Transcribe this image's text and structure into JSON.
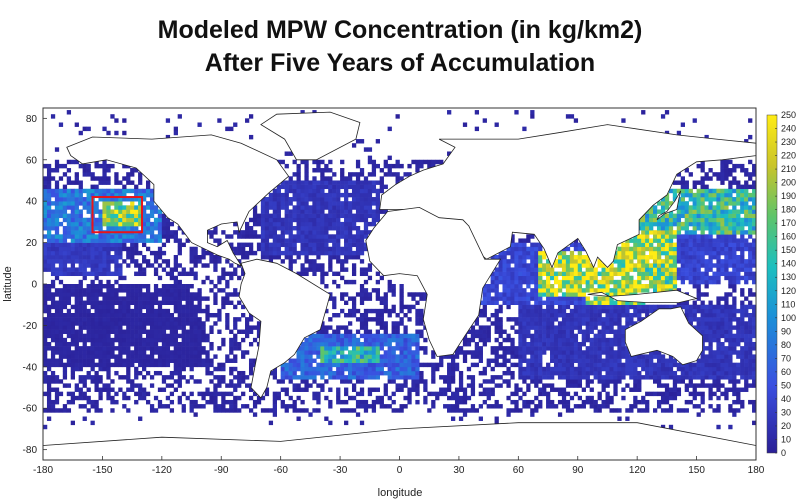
{
  "title_lines": [
    "Modeled MPW Concentration (in kg/km2)",
    "After Five Years of Accumulation"
  ],
  "chart_data": {
    "type": "heatmap",
    "title": "Modeled MPW Concentration (in kg/km2) After Five Years of Accumulation",
    "xlabel": "longitude",
    "ylabel": "latitude",
    "xlim": [
      -180,
      180
    ],
    "ylim": [
      -85,
      85
    ],
    "x_ticks": [
      -180,
      -150,
      -120,
      -90,
      -60,
      -30,
      0,
      30,
      60,
      90,
      120,
      150,
      180
    ],
    "y_ticks": [
      -80,
      -60,
      -40,
      -20,
      0,
      20,
      40,
      60,
      80
    ],
    "colorbar": {
      "min": 0,
      "max": 250,
      "ticks": [
        0,
        10,
        20,
        30,
        40,
        50,
        60,
        70,
        80,
        90,
        100,
        110,
        120,
        130,
        140,
        150,
        160,
        170,
        180,
        190,
        200,
        210,
        220,
        230,
        240,
        250
      ]
    },
    "highlight_box": {
      "lon": [
        -155,
        -130
      ],
      "lat": [
        25,
        42
      ],
      "color": "#e8141a"
    },
    "concentration_regions": [
      {
        "lon": [
          -180,
          -120
        ],
        "lat": [
          20,
          45
        ],
        "level": 90
      },
      {
        "lon": [
          -150,
          -130
        ],
        "lat": [
          28,
          40
        ],
        "level": 220
      },
      {
        "lon": [
          -180,
          -140
        ],
        "lat": [
          5,
          20
        ],
        "level": 30
      },
      {
        "lon": [
          -180,
          -100
        ],
        "lat": [
          -40,
          0
        ],
        "level": 8
      },
      {
        "lon": [
          -70,
          -10
        ],
        "lat": [
          15,
          50
        ],
        "level": 25
      },
      {
        "lon": [
          -60,
          10
        ],
        "lat": [
          -45,
          -25
        ],
        "level": 70
      },
      {
        "lon": [
          -40,
          -10
        ],
        "lat": [
          -38,
          -30
        ],
        "level": 150
      },
      {
        "lon": [
          -5,
          40
        ],
        "lat": [
          30,
          45
        ],
        "level": 230
      },
      {
        "lon": [
          40,
          100
        ],
        "lat": [
          -10,
          20
        ],
        "level": 45
      },
      {
        "lon": [
          70,
          120
        ],
        "lat": [
          -5,
          15
        ],
        "level": 240
      },
      {
        "lon": [
          95,
          140
        ],
        "lat": [
          -10,
          25
        ],
        "level": 220
      },
      {
        "lon": [
          120,
          180
        ],
        "lat": [
          25,
          45
        ],
        "level": 160
      },
      {
        "lon": [
          120,
          180
        ],
        "lat": [
          0,
          25
        ],
        "level": 40
      },
      {
        "lon": [
          60,
          180
        ],
        "lat": [
          -45,
          -10
        ],
        "level": 25
      }
    ],
    "colors": {
      "low": "#27229c",
      "mid": "#1e9ad6",
      "high": "#ffe600",
      "box": "#e8141a"
    }
  }
}
